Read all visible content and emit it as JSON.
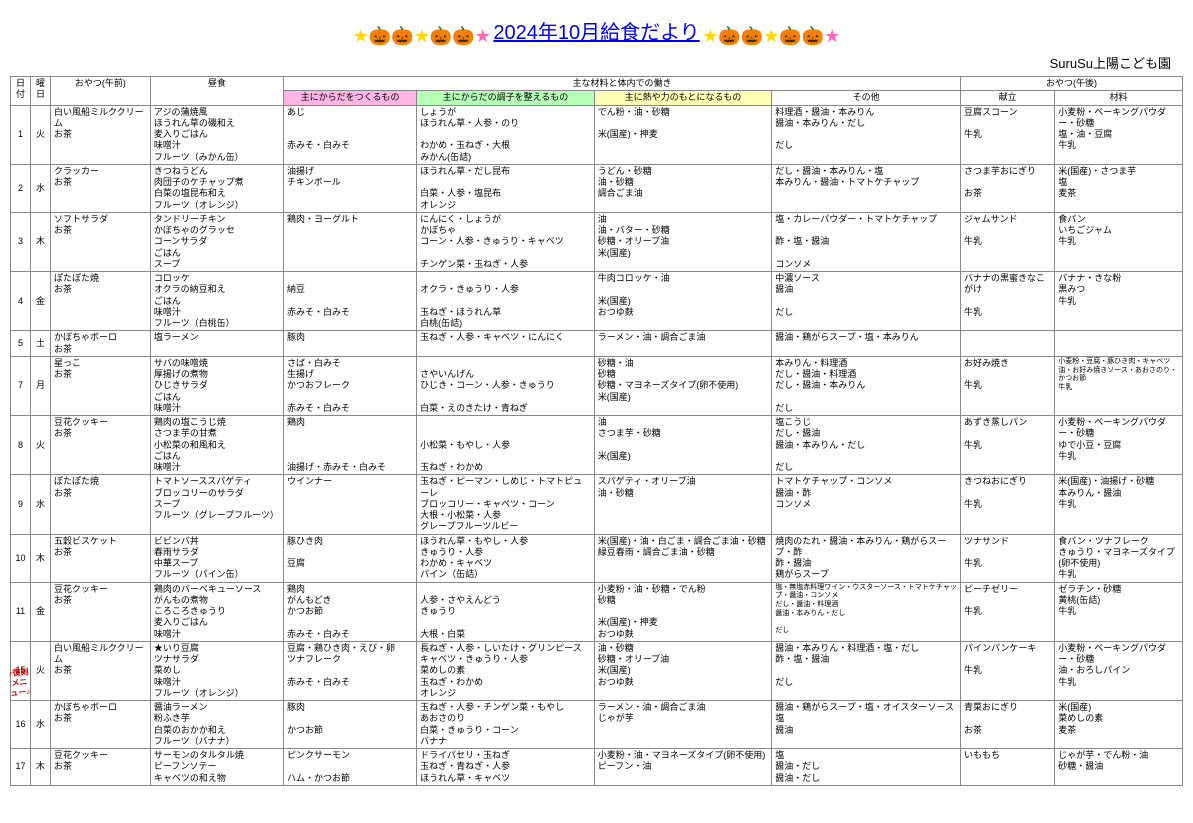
{
  "header": {
    "title": "2024年10月給食だより",
    "school": "SuruSu上陽こども園",
    "decorations_left": [
      {
        "cls": "star-y",
        "g": "★"
      },
      {
        "cls": "pump-t",
        "g": "🎃"
      },
      {
        "cls": "pump-p",
        "g": "🎃"
      },
      {
        "cls": "star-y",
        "g": "★"
      },
      {
        "cls": "pump-o",
        "g": "🎃"
      },
      {
        "cls": "pump-y",
        "g": "🎃"
      },
      {
        "cls": "star-p",
        "g": "★"
      }
    ],
    "decorations_right": [
      {
        "cls": "star-y",
        "g": "★"
      },
      {
        "cls": "pump-t",
        "g": "🎃"
      },
      {
        "cls": "pump-p",
        "g": "🎃"
      },
      {
        "cls": "star-y",
        "g": "★"
      },
      {
        "cls": "pump-o",
        "g": "🎃"
      },
      {
        "cls": "pump-y",
        "g": "🎃"
      },
      {
        "cls": "star-p",
        "g": "★"
      }
    ]
  },
  "columns": {
    "date": "日付",
    "day": "曜日",
    "snack_am": "おやつ(午前)",
    "lunch": "昼食",
    "ingredients_group": "主な材料と体内での働き",
    "c1": "主にからだをつくるもの",
    "c2": "主にからだの調子を整えるもの",
    "c3": "主に熱や力のもとになるもの",
    "c4": "その他",
    "snack_pm_group": "おやつ(午後)",
    "snack_pm1": "献立",
    "snack_pm2": "材料"
  },
  "rows": [
    {
      "date": "1",
      "day": "火",
      "snack_am": "白い風船ミルククリーム\nお茶",
      "lunch": "アジの蒲焼風\nほうれん草の磯和え\n麦入りごはん\n味噌汁\nフルーツ（みかん缶）",
      "c1": "あじ\n\n\n赤みそ・白みそ",
      "c2": "しょうが\nほうれん草・人参・のり\n\nわかめ・玉ねぎ・大根\nみかん(缶詰)",
      "c3": "でん粉・油・砂糖\n\n米(国産)・押麦",
      "c4": "料理酒・醤油・本みりん\n醤油・本みりん・だし\n\nだし",
      "pm1": "豆腐スコーン\n\n牛乳",
      "pm2": "小麦粉・ベーキングパウダー・砂糖\n塩・油・豆腐\n牛乳"
    },
    {
      "date": "2",
      "day": "水",
      "snack_am": "クラッカー\nお茶",
      "lunch": "きつねうどん\n肉団子のケチャップ煮\n白菜の塩昆布和え\nフルーツ（オレンジ）",
      "c1": "油揚げ\nチキンボール",
      "c2": "ほうれん草・だし昆布\n\n白菜・人参・塩昆布\nオレンジ",
      "c3": "うどん・砂糖\n油・砂糖\n調合ごま油",
      "c4": "だし・醤油・本みりん・塩\n本みりん・醤油・トマトケチャップ",
      "pm1": "さつま芋おにぎり\n\nお茶",
      "pm2": "米(国産)・さつま芋\n塩\n麦茶"
    },
    {
      "date": "3",
      "day": "木",
      "snack_am": "ソフトサラダ\nお茶",
      "lunch": "タンドリーチキン\nかぼちゃのグラッセ\nコーンサラダ\nごはん\nスープ",
      "c1": "鶏肉・ヨーグルト",
      "c2": "にんにく・しょうが\nかぼちゃ\nコーン・人参・きゅうり・キャベツ\n\nチンゲン菜・玉ねぎ・人参",
      "c3": "油\n油・バター・砂糖\n砂糖・オリーブ油\n米(国産)",
      "c4": "塩・カレーパウダー・トマトケチャップ\n\n酢・塩・醤油\n\nコンソメ",
      "pm1": "ジャムサンド\n\n牛乳",
      "pm2": "食パン\nいちごジャム\n牛乳"
    },
    {
      "date": "4",
      "day": "金",
      "snack_am": "ぽたぽた焼\nお茶",
      "lunch": "コロッケ\nオクラの納豆和え\nごはん\n味噌汁\nフルーツ（白桃缶）",
      "c1": "\n納豆\n\n赤みそ・白みそ",
      "c2": "\nオクラ・きゅうり・人参\n\n玉ねぎ・ほうれん草\n白桃(缶詰)",
      "c3": "牛肉コロッケ・油\n\n米(国産)\nおつゆ麩",
      "c4": "中濃ソース\n醤油\n\nだし",
      "pm1": "バナナの黒蜜きなこがけ\n\n牛乳",
      "pm2": "バナナ・きな粉\n黒みつ\n牛乳"
    },
    {
      "date": "5",
      "day": "土",
      "snack_am": "かぼちゃボーロ\nお茶",
      "lunch": "塩ラーメン",
      "c1": "豚肉",
      "c2": "玉ねぎ・人参・キャベツ・にんにく",
      "c3": "ラーメン・油・調合ごま油",
      "c4": "醤油・鶏がらスープ・塩・本みりん",
      "pm1": "",
      "pm2": ""
    },
    {
      "date": "7",
      "day": "月",
      "snack_am": "星っこ\nお茶",
      "lunch": "サバの味噌焼\n厚揚げの煮物\nひじきサラダ\nごはん\n味噌汁",
      "c1": "さば・白みそ\n生揚げ\nかつおフレーク\n\n赤みそ・白みそ",
      "c2": "\nさやいんげん\nひじき・コーン・人参・きゅうり\n\n白菜・えのきたけ・青ねぎ",
      "c3": "砂糖・油\n砂糖\n砂糖・マヨネーズタイプ(卵不使用)\n米(国産)",
      "c4": "本みりん・料理酒\nだし・醤油・料理酒\nだし・醤油・本みりん\n\nだし",
      "pm1": "お好み焼き\n\n牛乳",
      "pm2": "小麦粉・豆腐・豚ひき肉・キャベツ\n油・お好み焼きソース・あおさのり・かつお節\n牛乳",
      "pm2cls": "tiny"
    },
    {
      "date": "8",
      "day": "火",
      "snack_am": "豆花クッキー\nお茶",
      "lunch": "鶏肉の塩こうじ焼\nさつま芋の甘煮\n小松菜の和風和え\nごはん\n味噌汁",
      "c1": "鶏肉\n\n\n\n油揚げ・赤みそ・白みそ",
      "c2": "\n\n小松菜・もやし・人参\n\n玉ねぎ・わかめ",
      "c3": "油\nさつま芋・砂糖\n\n米(国産)",
      "c4": "塩こうじ\nだし・醤油\n醤油・本みりん・だし\n\nだし",
      "pm1": "あずき蒸しパン\n\n牛乳",
      "pm2": "小麦粉・ベーキングパウダー・砂糖\nゆで小豆・豆腐\n牛乳"
    },
    {
      "date": "9",
      "day": "水",
      "snack_am": "ぽたぽた焼\nお茶",
      "lunch": "トマトソーススパゲティ\nブロッコリーのサラダ\nスープ\nフルーツ（グレープフルーツ）",
      "c1": "ウインナー",
      "c2": "玉ねぎ・ピーマン・しめじ・トマトピューレ\nブロッコリー・キャベツ・コーン\n大根・小松菜・人参\nグレープフルーツルビー",
      "c3": "スパゲティ・オリーブ油\n油・砂糖",
      "c4": "トマトケチャップ・コンソメ\n醤油・酢\nコンソメ",
      "pm1": "きつねおにぎり\n\n牛乳",
      "pm2": "米(国産)・油揚げ・砂糖\n本みりん・醤油\n牛乳"
    },
    {
      "date": "10",
      "day": "木",
      "snack_am": "五穀ビスケット\nお茶",
      "lunch": "ビビンバ丼\n春雨サラダ\n中華スープ\nフルーツ（パイン缶）",
      "c1": "豚ひき肉\n\n豆腐",
      "c2": "ほうれん草・もやし・人参\nきゅうり・人参\nわかめ・キャベツ\nパイン（缶詰）",
      "c3": "米(国産)・油・白ごま・調合ごま油・砂糖\n緑豆春雨・調合ごま油・砂糖",
      "c4": "焼肉のたれ・醤油・本みりん・鶏がらスープ・酢\n酢・醤油\n鶏がらスープ",
      "pm1": "ツナサンド\n\n牛乳",
      "pm2": "食パン・ツナフレーク\nきゅうり・マヨネーズタイプ(卵不使用)\n牛乳"
    },
    {
      "date": "11",
      "day": "金",
      "snack_am": "豆花クッキー\nお茶",
      "lunch": "鶏肉のバーベキューソース\nがんもの煮物\nころころきゅうり\n麦入りごはん\n味噌汁",
      "c1": "鶏肉\nがんもどき\nかつお節\n\n赤みそ・白みそ",
      "c2": "\n人参・さやえんどう\nきゅうり\n\n大根・白菜",
      "c3": "小麦粉・油・砂糖・でん粉\n砂糖\n\n米(国産)・押麦\nおつゆ麩",
      "c4": "塩・無塩赤料理ワイン・ウスターソース・トマトケチャップ・醤油・コンソメ\nだし・醤油・料理酒\n醤油・本みりん・だし\n\nだし",
      "pm1": "ピーチゼリー\n\n牛乳",
      "pm2": "ゼラチン・砂糖\n黄桃(缶詰)\n牛乳",
      "c4cls": "tiny"
    },
    {
      "date": "15",
      "day": "火",
      "restore": true,
      "snack_am": "白い風船ミルククリーム\nお茶",
      "lunch": "★いり豆腐\nツナサラダ\n菜めし\n味噌汁\nフルーツ（オレンジ）",
      "c1": "豆腐・鶏ひき肉・えび・卵\nツナフレーク\n\n赤みそ・白みそ",
      "c2": "長ねぎ・人参・しいたけ・グリンピース\nキャベツ・きゅうり・人参\n菜めしの素\n玉ねぎ・わかめ\nオレンジ",
      "c3": "油・砂糖\n砂糖・オリーブ油\n米(国産)\nおつゆ麩",
      "c4": "醤油・本みりん・料理酒・塩・だし\n酢・塩・醤油\n\nだし",
      "pm1": "パインパンケーキ\n\n牛乳",
      "pm2": "小麦粉・ベーキングパウダー・砂糖\n油・おろしパイン\n牛乳"
    },
    {
      "date": "16",
      "day": "水",
      "snack_am": "かぼちゃボーロ\nお茶",
      "lunch": "醤油ラーメン\n粉ふき芋\n白菜のおかか和え\nフルーツ（バナナ）",
      "c1": "豚肉\n\nかつお節",
      "c2": "玉ねぎ・人参・チンゲン菜・もやし\nあおさのり\n白菜・きゅうり・コーン\nバナナ",
      "c3": "ラーメン・油・調合ごま油\nじゃが芋",
      "c4": "醤油・鶏がらスープ・塩・オイスターソース\n塩\n醤油",
      "pm1": "青菜おにぎり\n\nお茶",
      "pm2": "米(国産)\n菜めしの素\n麦茶"
    },
    {
      "date": "17",
      "day": "木",
      "snack_am": "豆花クッキー\nお茶",
      "lunch": "サーモンのタルタル焼\nピーフンソテー\nキャベツの和え物",
      "c1": "ピンクサーモン\n\nハム・かつお節",
      "c2": "ドライパセリ・玉ねぎ\n玉ねぎ・青ねぎ・人参\nほうれん草・キャベツ",
      "c3": "小麦粉・油・マヨネーズタイプ(卵不使用)\nピーフン・油",
      "c4": "塩\n醤油・だし\n醤油・だし",
      "pm1": "いももち",
      "pm2": "じゃが芋・でん粉・油\n砂糖・醤油"
    }
  ],
  "restore_label": "♪復刻\nメニュー♪"
}
